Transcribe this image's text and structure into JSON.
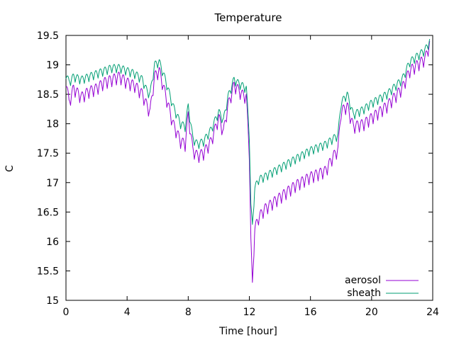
{
  "chart_data": {
    "type": "line",
    "title": "Temperature",
    "xlabel": "Time [hour]",
    "ylabel": "C",
    "xlim": [
      0,
      24
    ],
    "ylim": [
      15,
      19.5
    ],
    "xticks": [
      "0",
      "4",
      "8",
      "12",
      "16",
      "20",
      "24"
    ],
    "yticks": [
      "15",
      "15.5",
      "16",
      "16.5",
      "17",
      "17.5",
      "18",
      "18.5",
      "19",
      "19.5"
    ],
    "grid": false,
    "legend_position": "bottom-right",
    "series": [
      {
        "name": "aerosol",
        "color": "#9400d3",
        "x": [
          0,
          0.2,
          0.5,
          1,
          1.5,
          2,
          2.5,
          3,
          3.5,
          4,
          4.5,
          5,
          5.3,
          5.5,
          5.8,
          6.1,
          6.5,
          7,
          7.5,
          7.8,
          8,
          8.3,
          8.6,
          9,
          9.5,
          10,
          10.3,
          10.6,
          11,
          11.2,
          11.5,
          11.8,
          12,
          12.1,
          12.2,
          12.35,
          12.6,
          13,
          14,
          15,
          16,
          17,
          17.5,
          17.8,
          18,
          18.4,
          18.8,
          19.5,
          20,
          21,
          22,
          22.5,
          23,
          23.5,
          23.8
        ],
        "y": [
          18.75,
          18.35,
          18.6,
          18.45,
          18.55,
          18.6,
          18.7,
          18.75,
          18.8,
          18.7,
          18.65,
          18.5,
          18.3,
          18.2,
          18.8,
          18.9,
          18.5,
          18.0,
          17.7,
          17.65,
          18.15,
          17.55,
          17.45,
          17.5,
          17.7,
          18.1,
          17.85,
          18.3,
          18.65,
          18.6,
          18.5,
          18.45,
          17.5,
          16.0,
          15.25,
          16.2,
          16.4,
          16.55,
          16.75,
          16.95,
          17.1,
          17.2,
          17.45,
          17.55,
          18.2,
          18.3,
          17.95,
          18.0,
          18.1,
          18.3,
          18.6,
          18.9,
          19.0,
          19.1,
          19.35
        ],
        "amp": 0.17
      },
      {
        "name": "sheath",
        "color": "#009e73",
        "x": [
          0,
          0.2,
          0.5,
          1,
          1.5,
          2,
          2.5,
          3,
          3.5,
          4,
          4.5,
          5,
          5.3,
          5.5,
          5.8,
          6.1,
          6.5,
          7,
          7.5,
          7.8,
          8,
          8.3,
          8.6,
          9,
          9.5,
          10,
          10.3,
          10.6,
          11,
          11.2,
          11.5,
          11.8,
          12,
          12.1,
          12.2,
          12.35,
          12.6,
          13,
          14,
          15,
          16,
          17,
          17.5,
          17.8,
          18,
          18.4,
          18.8,
          19.5,
          20,
          21,
          22,
          22.5,
          23,
          23.5,
          23.8
        ],
        "y": [
          18.85,
          18.7,
          18.8,
          18.75,
          18.8,
          18.85,
          18.9,
          18.95,
          18.95,
          18.9,
          18.85,
          18.75,
          18.55,
          18.5,
          19.0,
          19.05,
          18.75,
          18.3,
          18.0,
          17.95,
          18.3,
          17.75,
          17.65,
          17.7,
          17.9,
          18.2,
          18.05,
          18.45,
          18.75,
          18.7,
          18.65,
          18.6,
          17.8,
          16.6,
          16.25,
          16.9,
          17.05,
          17.1,
          17.25,
          17.4,
          17.55,
          17.65,
          17.75,
          17.8,
          18.35,
          18.5,
          18.15,
          18.25,
          18.35,
          18.5,
          18.75,
          19.05,
          19.15,
          19.25,
          19.4
        ],
        "amp": 0.12
      }
    ]
  }
}
